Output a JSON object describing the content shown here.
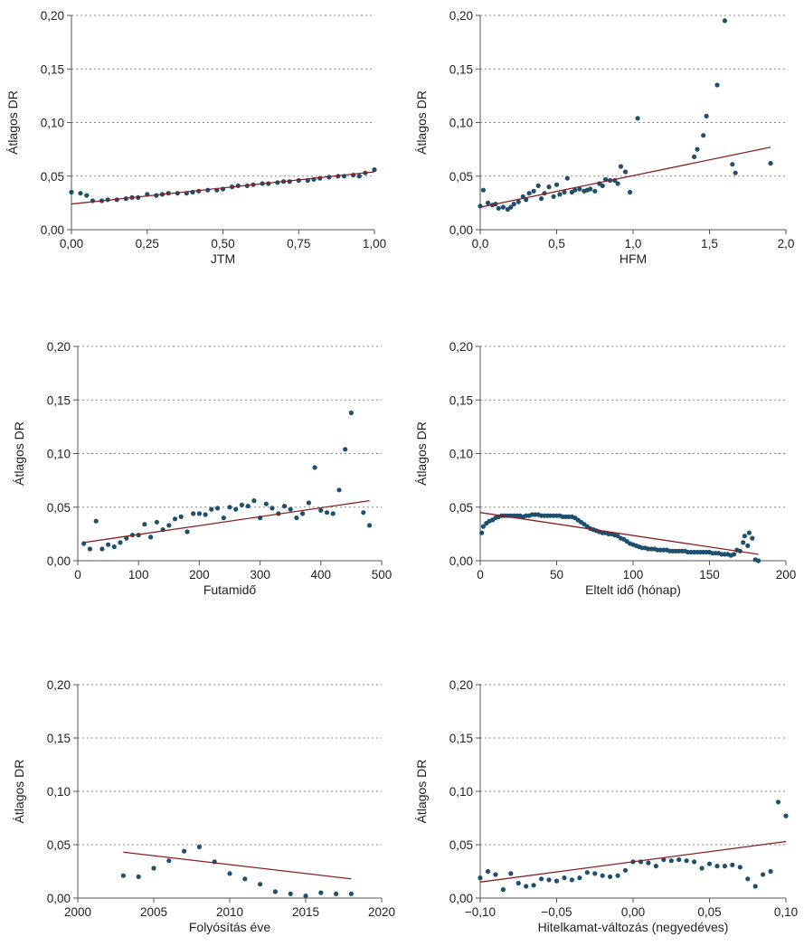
{
  "colors": {
    "points": "#1d4f6e",
    "trend": "#8b1f1f",
    "axis": "#555555",
    "grid": "#888888"
  },
  "chart_data": [
    {
      "type": "scatter",
      "xlabel": "JTM",
      "ylabel": "Átlagos DR",
      "xlim": [
        0,
        1
      ],
      "ylim": [
        0,
        0.2
      ],
      "xticks": [
        0,
        0.25,
        0.5,
        0.75,
        1
      ],
      "xtick_labels": [
        "0,00",
        "0,25",
        "0,50",
        "0,75",
        "1,00"
      ],
      "yticks": [
        0,
        0.05,
        0.1,
        0.15,
        0.2
      ],
      "ytick_labels": [
        "0,00",
        "0,05",
        "0,10",
        "0,15",
        "0,20"
      ],
      "grid": "horizontal dotted",
      "points": [
        [
          0.0,
          0.035
        ],
        [
          0.03,
          0.034
        ],
        [
          0.05,
          0.032
        ],
        [
          0.07,
          0.027
        ],
        [
          0.1,
          0.027
        ],
        [
          0.12,
          0.028
        ],
        [
          0.15,
          0.028
        ],
        [
          0.18,
          0.029
        ],
        [
          0.2,
          0.03
        ],
        [
          0.22,
          0.03
        ],
        [
          0.25,
          0.033
        ],
        [
          0.28,
          0.032
        ],
        [
          0.3,
          0.033
        ],
        [
          0.32,
          0.034
        ],
        [
          0.35,
          0.034
        ],
        [
          0.38,
          0.034
        ],
        [
          0.4,
          0.035
        ],
        [
          0.42,
          0.036
        ],
        [
          0.45,
          0.037
        ],
        [
          0.48,
          0.037
        ],
        [
          0.5,
          0.038
        ],
        [
          0.53,
          0.04
        ],
        [
          0.55,
          0.041
        ],
        [
          0.58,
          0.041
        ],
        [
          0.6,
          0.042
        ],
        [
          0.63,
          0.043
        ],
        [
          0.65,
          0.043
        ],
        [
          0.68,
          0.044
        ],
        [
          0.7,
          0.045
        ],
        [
          0.72,
          0.045
        ],
        [
          0.75,
          0.046
        ],
        [
          0.78,
          0.046
        ],
        [
          0.8,
          0.047
        ],
        [
          0.82,
          0.048
        ],
        [
          0.85,
          0.049
        ],
        [
          0.88,
          0.05
        ],
        [
          0.9,
          0.05
        ],
        [
          0.93,
          0.051
        ],
        [
          0.95,
          0.05
        ],
        [
          0.97,
          0.053
        ],
        [
          1.0,
          0.056
        ]
      ],
      "trend": [
        [
          0,
          0.024
        ],
        [
          1,
          0.054
        ]
      ]
    },
    {
      "type": "scatter",
      "xlabel": "HFM",
      "ylabel": "Átlagos DR",
      "xlim": [
        0,
        2
      ],
      "ylim": [
        0,
        0.2
      ],
      "xticks": [
        0,
        0.5,
        1,
        1.5,
        2
      ],
      "xtick_labels": [
        "0,0",
        "0,5",
        "1,0",
        "1,5",
        "2,0"
      ],
      "yticks": [
        0,
        0.05,
        0.1,
        0.15,
        0.2
      ],
      "ytick_labels": [
        "0,00",
        "0,05",
        "0,10",
        "0,15",
        "0,20"
      ],
      "grid": "horizontal dotted",
      "points": [
        [
          0.0,
          0.022
        ],
        [
          0.02,
          0.037
        ],
        [
          0.05,
          0.025
        ],
        [
          0.08,
          0.023
        ],
        [
          0.1,
          0.024
        ],
        [
          0.12,
          0.02
        ],
        [
          0.15,
          0.021
        ],
        [
          0.18,
          0.019
        ],
        [
          0.2,
          0.021
        ],
        [
          0.22,
          0.024
        ],
        [
          0.25,
          0.026
        ],
        [
          0.28,
          0.031
        ],
        [
          0.3,
          0.028
        ],
        [
          0.32,
          0.034
        ],
        [
          0.35,
          0.036
        ],
        [
          0.38,
          0.041
        ],
        [
          0.4,
          0.029
        ],
        [
          0.42,
          0.034
        ],
        [
          0.45,
          0.04
        ],
        [
          0.48,
          0.031
        ],
        [
          0.5,
          0.042
        ],
        [
          0.52,
          0.033
        ],
        [
          0.55,
          0.035
        ],
        [
          0.57,
          0.048
        ],
        [
          0.6,
          0.035
        ],
        [
          0.62,
          0.037
        ],
        [
          0.65,
          0.038
        ],
        [
          0.68,
          0.036
        ],
        [
          0.7,
          0.037
        ],
        [
          0.72,
          0.038
        ],
        [
          0.75,
          0.036
        ],
        [
          0.78,
          0.043
        ],
        [
          0.8,
          0.041
        ],
        [
          0.82,
          0.047
        ],
        [
          0.85,
          0.046
        ],
        [
          0.88,
          0.046
        ],
        [
          0.9,
          0.043
        ],
        [
          0.92,
          0.059
        ],
        [
          0.95,
          0.054
        ],
        [
          0.98,
          0.035
        ],
        [
          1.03,
          0.104
        ],
        [
          1.4,
          0.068
        ],
        [
          1.42,
          0.075
        ],
        [
          1.46,
          0.088
        ],
        [
          1.48,
          0.106
        ],
        [
          1.55,
          0.135
        ],
        [
          1.6,
          0.195
        ],
        [
          1.65,
          0.061
        ],
        [
          1.67,
          0.053
        ],
        [
          1.9,
          0.062
        ]
      ],
      "trend": [
        [
          0,
          0.021
        ],
        [
          1.9,
          0.077
        ]
      ]
    },
    {
      "type": "scatter",
      "xlabel": "Futamidő",
      "ylabel": "Átlagos DR",
      "xlim": [
        0,
        500
      ],
      "ylim": [
        0,
        0.2
      ],
      "xticks": [
        0,
        100,
        200,
        300,
        400,
        500
      ],
      "xtick_labels": [
        "0",
        "100",
        "200",
        "300",
        "400",
        "500"
      ],
      "yticks": [
        0,
        0.05,
        0.1,
        0.15,
        0.2
      ],
      "ytick_labels": [
        "0,00",
        "0,05",
        "0,10",
        "0,15",
        "0,20"
      ],
      "grid": "horizontal dotted",
      "points": [
        [
          10,
          0.016
        ],
        [
          20,
          0.011
        ],
        [
          30,
          0.037
        ],
        [
          40,
          0.011
        ],
        [
          50,
          0.015
        ],
        [
          60,
          0.013
        ],
        [
          70,
          0.017
        ],
        [
          80,
          0.021
        ],
        [
          90,
          0.024
        ],
        [
          100,
          0.024
        ],
        [
          110,
          0.034
        ],
        [
          120,
          0.022
        ],
        [
          130,
          0.036
        ],
        [
          140,
          0.029
        ],
        [
          150,
          0.033
        ],
        [
          160,
          0.039
        ],
        [
          170,
          0.041
        ],
        [
          180,
          0.027
        ],
        [
          190,
          0.044
        ],
        [
          200,
          0.044
        ],
        [
          210,
          0.043
        ],
        [
          220,
          0.048
        ],
        [
          230,
          0.049
        ],
        [
          240,
          0.04
        ],
        [
          250,
          0.05
        ],
        [
          260,
          0.048
        ],
        [
          270,
          0.052
        ],
        [
          280,
          0.051
        ],
        [
          290,
          0.056
        ],
        [
          300,
          0.04
        ],
        [
          310,
          0.053
        ],
        [
          320,
          0.049
        ],
        [
          330,
          0.044
        ],
        [
          340,
          0.051
        ],
        [
          350,
          0.048
        ],
        [
          360,
          0.04
        ],
        [
          370,
          0.044
        ],
        [
          380,
          0.054
        ],
        [
          390,
          0.087
        ],
        [
          400,
          0.047
        ],
        [
          410,
          0.045
        ],
        [
          420,
          0.044
        ],
        [
          430,
          0.066
        ],
        [
          440,
          0.104
        ],
        [
          450,
          0.138
        ],
        [
          470,
          0.045
        ],
        [
          480,
          0.033
        ]
      ],
      "trend": [
        [
          10,
          0.017
        ],
        [
          480,
          0.056
        ]
      ]
    },
    {
      "type": "scatter",
      "xlabel": "Eltelt idő (hónap)",
      "ylabel": "Átlagos DR",
      "xlim": [
        0,
        200
      ],
      "ylim": [
        0,
        0.2
      ],
      "xticks": [
        0,
        50,
        100,
        150,
        200
      ],
      "xtick_labels": [
        "0",
        "50",
        "100",
        "150",
        "200"
      ],
      "yticks": [
        0,
        0.05,
        0.1,
        0.15,
        0.2
      ],
      "ytick_labels": [
        "0,00",
        "0,05",
        "0,10",
        "0,15",
        "0,20"
      ],
      "grid": "horizontal dotted",
      "points": [
        [
          1,
          0.026
        ],
        [
          2,
          0.032
        ],
        [
          4,
          0.035
        ],
        [
          6,
          0.037
        ],
        [
          8,
          0.038
        ],
        [
          10,
          0.04
        ],
        [
          12,
          0.041
        ],
        [
          14,
          0.042
        ],
        [
          16,
          0.042
        ],
        [
          18,
          0.042
        ],
        [
          20,
          0.042
        ],
        [
          22,
          0.042
        ],
        [
          24,
          0.042
        ],
        [
          26,
          0.042
        ],
        [
          28,
          0.041
        ],
        [
          30,
          0.042
        ],
        [
          32,
          0.042
        ],
        [
          34,
          0.043
        ],
        [
          36,
          0.043
        ],
        [
          38,
          0.043
        ],
        [
          40,
          0.042
        ],
        [
          42,
          0.042
        ],
        [
          44,
          0.042
        ],
        [
          46,
          0.042
        ],
        [
          48,
          0.042
        ],
        [
          50,
          0.042
        ],
        [
          52,
          0.042
        ],
        [
          54,
          0.041
        ],
        [
          56,
          0.041
        ],
        [
          58,
          0.041
        ],
        [
          60,
          0.041
        ],
        [
          62,
          0.04
        ],
        [
          64,
          0.038
        ],
        [
          66,
          0.036
        ],
        [
          68,
          0.034
        ],
        [
          70,
          0.032
        ],
        [
          72,
          0.03
        ],
        [
          74,
          0.029
        ],
        [
          76,
          0.028
        ],
        [
          78,
          0.027
        ],
        [
          80,
          0.026
        ],
        [
          82,
          0.026
        ],
        [
          84,
          0.025
        ],
        [
          86,
          0.025
        ],
        [
          88,
          0.024
        ],
        [
          90,
          0.023
        ],
        [
          92,
          0.021
        ],
        [
          94,
          0.02
        ],
        [
          96,
          0.018
        ],
        [
          98,
          0.016
        ],
        [
          100,
          0.015
        ],
        [
          102,
          0.014
        ],
        [
          104,
          0.013
        ],
        [
          106,
          0.012
        ],
        [
          108,
          0.012
        ],
        [
          110,
          0.011
        ],
        [
          112,
          0.011
        ],
        [
          114,
          0.011
        ],
        [
          116,
          0.01
        ],
        [
          118,
          0.01
        ],
        [
          120,
          0.01
        ],
        [
          122,
          0.01
        ],
        [
          124,
          0.009
        ],
        [
          126,
          0.009
        ],
        [
          128,
          0.009
        ],
        [
          130,
          0.009
        ],
        [
          132,
          0.009
        ],
        [
          134,
          0.009
        ],
        [
          136,
          0.008
        ],
        [
          138,
          0.008
        ],
        [
          140,
          0.008
        ],
        [
          142,
          0.008
        ],
        [
          144,
          0.008
        ],
        [
          146,
          0.008
        ],
        [
          148,
          0.008
        ],
        [
          150,
          0.008
        ],
        [
          152,
          0.007
        ],
        [
          154,
          0.007
        ],
        [
          156,
          0.007
        ],
        [
          158,
          0.006
        ],
        [
          160,
          0.006
        ],
        [
          162,
          0.006
        ],
        [
          164,
          0.005
        ],
        [
          166,
          0.006
        ],
        [
          168,
          0.01
        ],
        [
          170,
          0.009
        ],
        [
          172,
          0.017
        ],
        [
          173,
          0.023
        ],
        [
          175,
          0.014
        ],
        [
          176,
          0.026
        ],
        [
          178,
          0.021
        ],
        [
          180,
          0.001
        ],
        [
          182,
          0.0
        ]
      ],
      "trend": [
        [
          0,
          0.045
        ],
        [
          182,
          0.006
        ]
      ]
    },
    {
      "type": "scatter",
      "xlabel": "Folyósítás éve",
      "ylabel": "Átlagos DR",
      "xlim": [
        2000,
        2020
      ],
      "ylim": [
        0,
        0.2
      ],
      "xticks": [
        2000,
        2005,
        2010,
        2015,
        2020
      ],
      "xtick_labels": [
        "2000",
        "2005",
        "2010",
        "2015",
        "2020"
      ],
      "yticks": [
        0,
        0.05,
        0.1,
        0.15,
        0.2
      ],
      "ytick_labels": [
        "0,00",
        "0,05",
        "0,10",
        "0,15",
        "0,20"
      ],
      "grid": "horizontal dotted",
      "points": [
        [
          2003,
          0.021
        ],
        [
          2004,
          0.02
        ],
        [
          2005,
          0.028
        ],
        [
          2006,
          0.035
        ],
        [
          2007,
          0.044
        ],
        [
          2008,
          0.048
        ],
        [
          2009,
          0.034
        ],
        [
          2010,
          0.023
        ],
        [
          2011,
          0.018
        ],
        [
          2012,
          0.013
        ],
        [
          2013,
          0.006
        ],
        [
          2014,
          0.004
        ],
        [
          2015,
          0.002
        ],
        [
          2016,
          0.005
        ],
        [
          2017,
          0.004
        ],
        [
          2018,
          0.004
        ]
      ],
      "trend": [
        [
          2003,
          0.043
        ],
        [
          2018,
          0.018
        ]
      ]
    },
    {
      "type": "scatter",
      "xlabel": "Hitelkamat-változás (negyedéves)",
      "ylabel": "Átlagos DR",
      "xlim": [
        -0.1,
        0.1
      ],
      "ylim": [
        0,
        0.2
      ],
      "xticks": [
        -0.1,
        -0.05,
        0,
        0.05,
        0.1
      ],
      "xtick_labels": [
        "−0,10",
        "−0,05",
        "0,00",
        "0,05",
        "0,10"
      ],
      "yticks": [
        0,
        0.05,
        0.1,
        0.15,
        0.2
      ],
      "ytick_labels": [
        "0,00",
        "0,05",
        "0,10",
        "0,15",
        "0,20"
      ],
      "grid": "horizontal dotted",
      "points": [
        [
          -0.1,
          0.019
        ],
        [
          -0.095,
          0.025
        ],
        [
          -0.09,
          0.022
        ],
        [
          -0.085,
          0.008
        ],
        [
          -0.08,
          0.023
        ],
        [
          -0.075,
          0.014
        ],
        [
          -0.07,
          0.011
        ],
        [
          -0.065,
          0.012
        ],
        [
          -0.06,
          0.018
        ],
        [
          -0.055,
          0.017
        ],
        [
          -0.05,
          0.016
        ],
        [
          -0.045,
          0.019
        ],
        [
          -0.04,
          0.017
        ],
        [
          -0.035,
          0.019
        ],
        [
          -0.03,
          0.024
        ],
        [
          -0.025,
          0.023
        ],
        [
          -0.02,
          0.021
        ],
        [
          -0.015,
          0.02
        ],
        [
          -0.01,
          0.021
        ],
        [
          -0.005,
          0.026
        ],
        [
          0.0,
          0.034
        ],
        [
          0.005,
          0.034
        ],
        [
          0.01,
          0.033
        ],
        [
          0.015,
          0.03
        ],
        [
          0.02,
          0.036
        ],
        [
          0.025,
          0.035
        ],
        [
          0.03,
          0.036
        ],
        [
          0.035,
          0.035
        ],
        [
          0.04,
          0.034
        ],
        [
          0.045,
          0.028
        ],
        [
          0.05,
          0.032
        ],
        [
          0.055,
          0.03
        ],
        [
          0.06,
          0.03
        ],
        [
          0.065,
          0.031
        ],
        [
          0.07,
          0.029
        ],
        [
          0.075,
          0.018
        ],
        [
          0.08,
          0.011
        ],
        [
          0.085,
          0.022
        ],
        [
          0.09,
          0.025
        ],
        [
          0.095,
          0.09
        ],
        [
          0.1,
          0.077
        ]
      ],
      "trend": [
        [
          -0.1,
          0.015
        ],
        [
          0.1,
          0.053
        ]
      ]
    }
  ]
}
